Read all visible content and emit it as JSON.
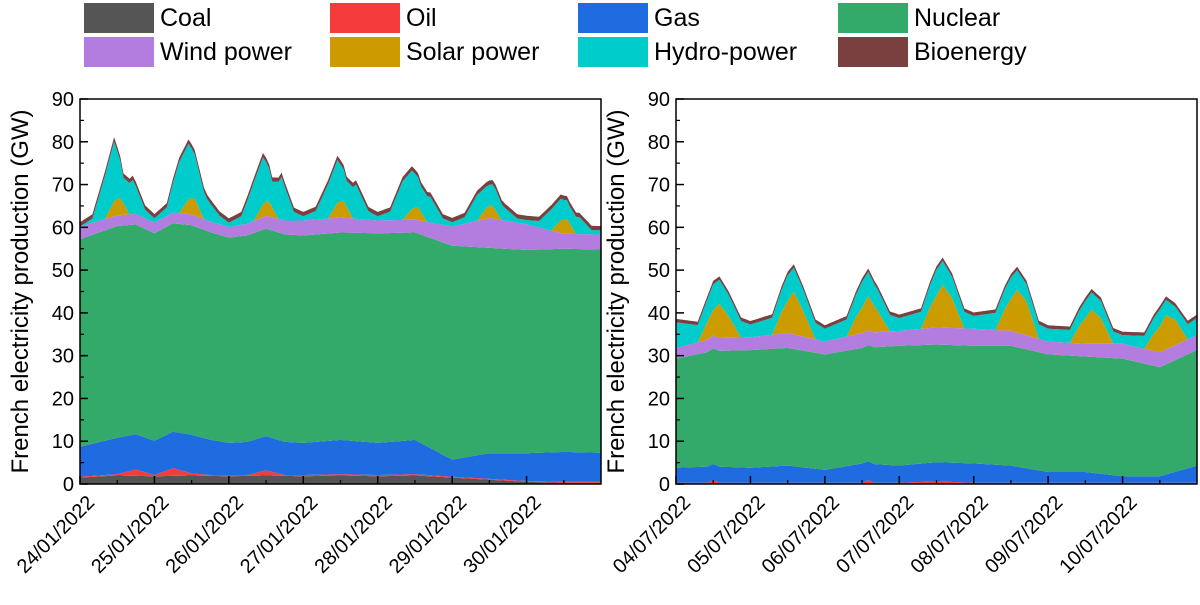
{
  "legend": [
    {
      "name": "Coal",
      "color": "#555555"
    },
    {
      "name": "Oil",
      "color": "#f53c3c"
    },
    {
      "name": "Gas",
      "color": "#1f6be0"
    },
    {
      "name": "Nuclear",
      "color": "#33a96a"
    },
    {
      "name": "Wind power",
      "color": "#b37de0"
    },
    {
      "name": "Solar power",
      "color": "#cc9b00"
    },
    {
      "name": "Hydro-power",
      "color": "#00cccc"
    },
    {
      "name": "Bioenergy",
      "color": "#7a4040"
    }
  ],
  "chart_data": [
    {
      "type": "area",
      "stacked": true,
      "ylabel": "French electricity production (GW)",
      "ylim": [
        0,
        90
      ],
      "yticks": [
        0,
        10,
        20,
        30,
        40,
        50,
        60,
        70,
        80,
        90
      ],
      "xticks": [
        "24/01/2022",
        "25/01/2022",
        "26/01/2022",
        "27/01/2022",
        "28/01/2022",
        "29/01/2022",
        "30/01/2022"
      ],
      "x_unit": "hours from 24/01/2022 00:00",
      "x_range": [
        0,
        168
      ],
      "series": [
        {
          "name": "Coal",
          "x": [
            0,
            12,
            24,
            36,
            48,
            60,
            72,
            84,
            96,
            108,
            120,
            132,
            144,
            156,
            168
          ],
          "values": [
            1.5,
            2.0,
            1.8,
            2.0,
            1.8,
            2.0,
            1.8,
            2.0,
            1.8,
            2.0,
            1.5,
            1.0,
            0.5,
            0.3,
            0.3
          ]
        },
        {
          "name": "Oil",
          "x": [
            0,
            12,
            18,
            24,
            30,
            36,
            42,
            48,
            54,
            60,
            66,
            72,
            84,
            96,
            108,
            120,
            132,
            144,
            156,
            168
          ],
          "values": [
            0.2,
            0.3,
            1.5,
            0.3,
            1.8,
            0.5,
            0.2,
            0.3,
            0.2,
            1.2,
            0.2,
            0.3,
            0.3,
            0.3,
            0.3,
            0.2,
            0.2,
            0.2,
            0.2,
            0.2
          ]
        },
        {
          "name": "Gas",
          "x": [
            0,
            12,
            24,
            36,
            48,
            60,
            72,
            84,
            96,
            108,
            120,
            132,
            144,
            156,
            168
          ],
          "values": [
            7.0,
            8.5,
            8.0,
            9.0,
            7.5,
            8.0,
            7.5,
            8.0,
            7.5,
            8.0,
            4.0,
            6.0,
            6.5,
            7.0,
            6.8
          ]
        },
        {
          "name": "Nuclear",
          "x": [
            0,
            12,
            24,
            36,
            48,
            60,
            72,
            84,
            96,
            108,
            120,
            132,
            144,
            156,
            168
          ],
          "values": [
            48.5,
            49.5,
            48.5,
            49.0,
            48.0,
            48.5,
            48.5,
            48.5,
            49.0,
            48.5,
            50.0,
            48.0,
            47.5,
            47.5,
            47.5
          ]
        },
        {
          "name": "Wind power",
          "x": [
            0,
            12,
            24,
            36,
            48,
            60,
            72,
            84,
            96,
            108,
            120,
            132,
            144,
            156,
            168
          ],
          "values": [
            3.0,
            2.5,
            2.5,
            2.5,
            2.5,
            3.0,
            3.5,
            3.5,
            3.0,
            3.0,
            4.5,
            7.0,
            6.0,
            3.5,
            3.5
          ]
        },
        {
          "name": "Solar power",
          "x": [
            0,
            8,
            11,
            13,
            16,
            24,
            32,
            35,
            37,
            40,
            48,
            56,
            59,
            61,
            64,
            72,
            80,
            83,
            85,
            88,
            96,
            104,
            107,
            109,
            112,
            120,
            128,
            131,
            133,
            136,
            144,
            152,
            155,
            157,
            160,
            168
          ],
          "values": [
            0,
            0,
            3.5,
            4.0,
            0,
            0,
            0,
            3.5,
            4.0,
            0,
            0,
            0,
            3.0,
            3.5,
            0,
            0,
            0,
            3.5,
            4.0,
            0,
            0,
            0,
            2.5,
            3.0,
            0,
            0,
            0,
            2.5,
            3.0,
            0,
            0,
            0,
            3.0,
            3.5,
            0,
            0
          ]
        },
        {
          "name": "Hydro-power",
          "x": [
            0,
            4,
            8,
            11,
            14,
            17,
            21,
            24,
            28,
            32,
            35,
            38,
            41,
            45,
            48,
            52,
            56,
            59,
            62,
            65,
            69,
            72,
            76,
            80,
            83,
            86,
            89,
            93,
            96,
            100,
            104,
            107,
            110,
            113,
            117,
            120,
            124,
            128,
            131,
            134,
            137,
            141,
            144,
            148,
            152,
            155,
            158,
            161,
            165,
            168
          ],
          "values": [
            0,
            1,
            10,
            14,
            6,
            8,
            2,
            1,
            2,
            12,
            13,
            9,
            5,
            2,
            1,
            2,
            9,
            11,
            6,
            10,
            2,
            1,
            2,
            8,
            10,
            6,
            8,
            2,
            1,
            2,
            9,
            9,
            6,
            6,
            1.5,
            1,
            1.5,
            6,
            5,
            5,
            3,
            1,
            1,
            1.5,
            5,
            5,
            4,
            4,
            1,
            1
          ]
        },
        {
          "name": "Bioenergy",
          "x": [
            0,
            168
          ],
          "values": [
            1.0,
            1.0
          ]
        }
      ]
    },
    {
      "type": "area",
      "stacked": true,
      "ylabel": "French electricity production (GW)",
      "ylim": [
        0,
        90
      ],
      "yticks": [
        0,
        10,
        20,
        30,
        40,
        50,
        60,
        70,
        80,
        90
      ],
      "xticks": [
        "04/07/2022",
        "05/07/2022",
        "06/07/2022",
        "07/07/2022",
        "08/07/2022",
        "09/07/2022",
        "10/07/2022"
      ],
      "x_unit": "hours from 04/07/2022 00:00",
      "x_range": [
        0,
        168
      ],
      "series": [
        {
          "name": "Coal",
          "x": [
            0,
            168
          ],
          "values": [
            0.1,
            0.1
          ]
        },
        {
          "name": "Oil",
          "x": [
            0,
            10,
            12,
            14,
            24,
            60,
            62,
            64,
            72,
            84,
            96,
            120,
            168
          ],
          "values": [
            0.2,
            0.2,
            0.8,
            0.2,
            0.2,
            0.2,
            0.8,
            0.2,
            0.2,
            0.5,
            0.2,
            0.2,
            0.2
          ]
        },
        {
          "name": "Gas",
          "x": [
            0,
            12,
            24,
            36,
            48,
            60,
            72,
            84,
            96,
            108,
            120,
            132,
            144,
            156,
            168
          ],
          "values": [
            3.5,
            3.8,
            3.5,
            4.0,
            3.0,
            4.5,
            4.0,
            4.5,
            4.5,
            4.0,
            2.5,
            2.5,
            1.5,
            1.5,
            4.0
          ]
        },
        {
          "name": "Nuclear",
          "x": [
            0,
            12,
            24,
            36,
            48,
            60,
            72,
            84,
            96,
            108,
            120,
            132,
            144,
            156,
            168
          ],
          "values": [
            25.5,
            27.0,
            27.5,
            27.5,
            27.0,
            27.0,
            28.0,
            27.5,
            27.5,
            28.0,
            27.5,
            27.0,
            27.5,
            25.5,
            27.0
          ]
        },
        {
          "name": "Wind power",
          "x": [
            0,
            12,
            24,
            36,
            48,
            60,
            72,
            84,
            96,
            108,
            120,
            132,
            144,
            156,
            168
          ],
          "values": [
            2.5,
            3.0,
            3.0,
            3.5,
            3.0,
            3.5,
            3.5,
            4.0,
            4.0,
            3.5,
            3.0,
            3.0,
            3.5,
            3.5,
            3.5
          ]
        },
        {
          "name": "Solar power",
          "x": [
            0,
            7,
            10,
            14,
            17,
            21,
            31,
            34,
            38,
            41,
            45,
            55,
            58,
            62,
            65,
            69,
            79,
            82,
            86,
            89,
            93,
            103,
            106,
            110,
            113,
            117,
            127,
            130,
            134,
            137,
            141,
            151,
            154,
            158,
            161,
            165,
            168
          ],
          "values": [
            0,
            0,
            4,
            8,
            5,
            0,
            0,
            5,
            10,
            6,
            0,
            0,
            4,
            8,
            5,
            0,
            0,
            5,
            10,
            7,
            0,
            0,
            5,
            10,
            8,
            0,
            0,
            4,
            8,
            6,
            0,
            0,
            4,
            8,
            6,
            0,
            0
          ]
        },
        {
          "name": "Hydro-power",
          "x": [
            0,
            7,
            12,
            17,
            24,
            31,
            36,
            41,
            48,
            55,
            60,
            65,
            72,
            79,
            84,
            89,
            96,
            103,
            108,
            113,
            120,
            127,
            132,
            137,
            144,
            151,
            156,
            161,
            168
          ],
          "values": [
            6,
            4,
            6,
            5,
            3,
            4,
            6,
            5,
            3,
            4,
            6,
            5,
            3,
            4,
            6,
            5,
            3,
            4,
            5,
            4,
            3,
            3,
            4,
            4,
            2,
            3,
            4,
            3,
            4
          ]
        },
        {
          "name": "Bioenergy",
          "x": [
            0,
            168
          ],
          "values": [
            0.8,
            0.8
          ]
        }
      ]
    }
  ]
}
